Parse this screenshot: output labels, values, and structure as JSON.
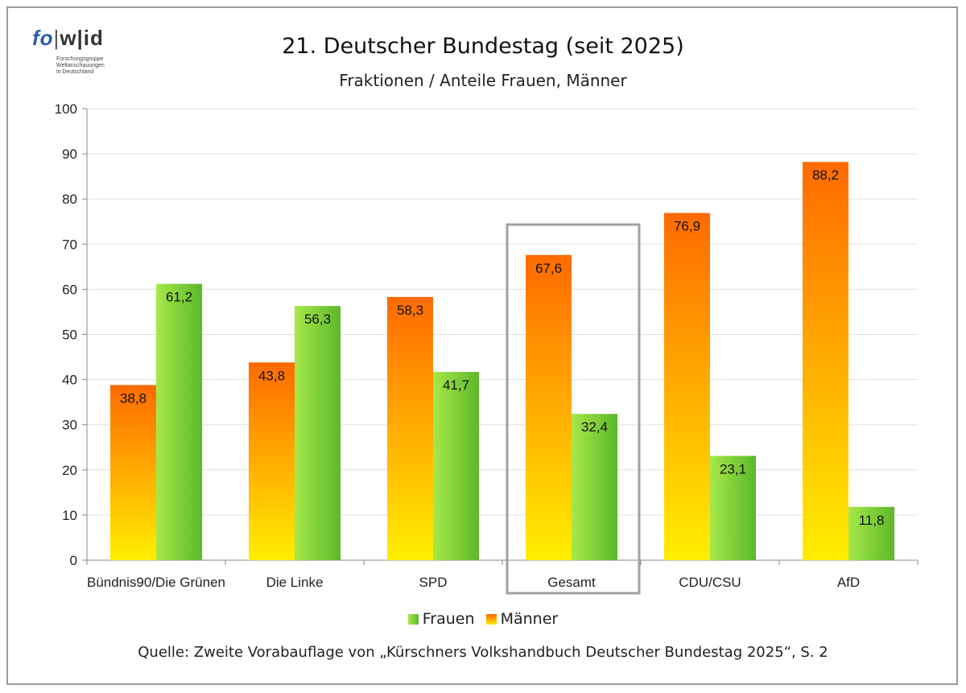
{
  "header": {
    "title": "21. Deutscher Bundestag (seit 2025)",
    "subtitle": "Fraktionen / Anteile Frauen, Männer"
  },
  "logo": {
    "part1": "fo",
    "separator": "|",
    "part2": "w|id",
    "tagline": [
      "Forschungsgruppe",
      "Weltanschauungen",
      "in Deutschland"
    ]
  },
  "footer": {
    "source": "Quelle: Zweite Vorabauflage von „Kürschners Volkshandbuch Deutscher Bundestag 2025“, S. 2"
  },
  "colors": {
    "frauen_light": "#a6e84a",
    "frauen_dark": "#5cb82a",
    "maenner_top": "#ff6a00",
    "maenner_bottom": "#ffee00",
    "highlight_box": "#a0a0a0",
    "grid": "#e0e0e0"
  },
  "chart_data": {
    "type": "bar",
    "categories": [
      "Bündnis90/Die Grünen",
      "Die Linke",
      "SPD",
      "Gesamt",
      "CDU/CSU",
      "AfD"
    ],
    "series": [
      {
        "name": "Männer",
        "values": [
          38.8,
          43.8,
          58.3,
          67.6,
          76.9,
          88.2
        ],
        "labels": [
          "38,8",
          "43,8",
          "58,3",
          "67,6",
          "76,9",
          "88,2"
        ]
      },
      {
        "name": "Frauen",
        "values": [
          61.2,
          56.3,
          41.7,
          32.4,
          23.1,
          11.8
        ],
        "labels": [
          "61,2",
          "56,3",
          "41,7",
          "32,4",
          "23,1",
          "11,8"
        ]
      }
    ],
    "ylim": [
      0,
      100
    ],
    "yticks": [
      0,
      10,
      20,
      30,
      40,
      50,
      60,
      70,
      80,
      90,
      100
    ],
    "grid": true,
    "legend": {
      "position": "bottom",
      "entries": [
        "Frauen",
        "Männer"
      ]
    },
    "highlighted_category": "Gesamt"
  }
}
